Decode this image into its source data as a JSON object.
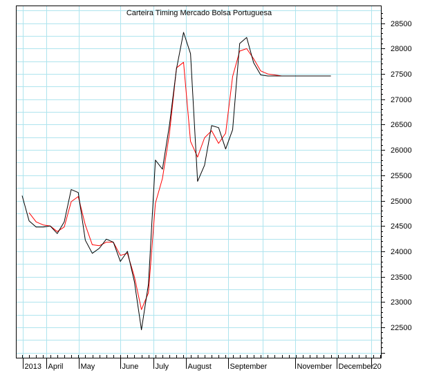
{
  "chart_data": {
    "type": "line",
    "title": "Carteira Timing Mercado Bolsa Portuguesa",
    "xlabel": "",
    "ylabel": "",
    "x_tick_labels": [
      "2013",
      "April",
      "May",
      "June",
      "July",
      "August",
      "September",
      "November",
      "December",
      "20"
    ],
    "y_ticks": [
      22500,
      23000,
      23500,
      24000,
      24500,
      25000,
      25500,
      26000,
      26500,
      27000,
      27500,
      28000,
      28500
    ],
    "ylim": [
      21900,
      28850
    ],
    "grid": true,
    "scale_side": "right",
    "x": [
      0,
      1,
      2,
      3,
      4,
      5,
      6,
      7,
      8,
      9,
      10,
      11,
      12,
      13,
      14,
      15,
      16,
      17,
      18,
      19,
      20,
      21,
      22,
      23,
      24,
      25,
      26,
      27,
      28,
      29,
      30,
      31,
      32,
      33,
      34,
      35,
      36,
      37,
      38,
      39,
      40,
      41,
      42,
      43,
      44
    ],
    "series": [
      {
        "color": "#000000",
        "values": [
          25100,
          24600,
          24480,
          24480,
          24500,
          24350,
          24580,
          25220,
          25160,
          24220,
          23960,
          24060,
          24240,
          24180,
          23800,
          24000,
          23400,
          22450,
          23350,
          25800,
          25620,
          26500,
          27600,
          28320,
          27900,
          25380,
          25700,
          26480,
          26440,
          26020,
          26400,
          28100,
          28220,
          27720,
          27480,
          27460,
          27460,
          27460,
          27460,
          27460,
          27460,
          27460,
          27460,
          27460,
          27460
        ]
      },
      {
        "color": "#ff0000",
        "values": [
          null,
          24760,
          24580,
          24520,
          24500,
          24390,
          24480,
          24980,
          25080,
          24520,
          24130,
          24110,
          24180,
          24180,
          23920,
          23960,
          23500,
          22850,
          23180,
          24950,
          25440,
          26330,
          27620,
          27730,
          26170,
          25860,
          26240,
          26380,
          26130,
          26330,
          27450,
          27950,
          28000,
          27800,
          27560,
          27500,
          27480,
          27460,
          27460,
          27460,
          27460,
          27460,
          27460,
          27460,
          27460
        ]
      }
    ]
  }
}
